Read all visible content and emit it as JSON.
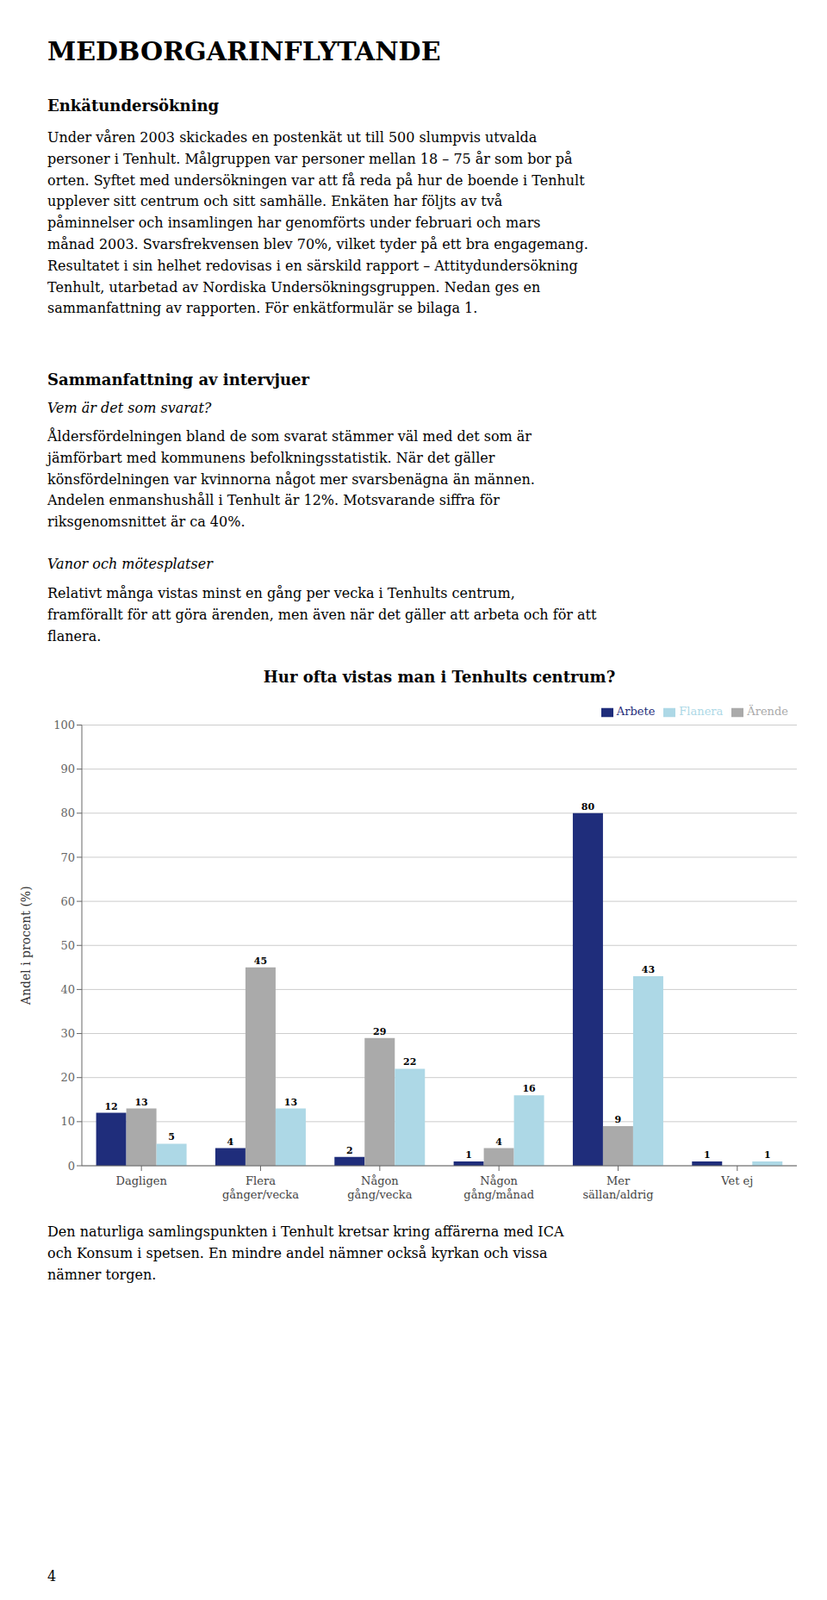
{
  "page_title": "MEDBORGARINFLYTANDE",
  "section1_title": "Enkätundersökning",
  "body1_lines": [
    "Under våren 2003 skickades en postenkät ut till 500 slumpvis utvalda",
    "personer i Tenhult. Målgruppen var personer mellan 18 – 75 år som bor på",
    "orten. Syftet med undersökningen var att få reda på hur de boende i Tenhult",
    "upplever sitt centrum och sitt samhälle. Enkäten har följts av två",
    "påminnelser och insamlingen har genomförts under februari och mars",
    "månad 2003. Svarsfrekvensen blev 70%, vilket tyder på ett bra engagemang.",
    "Resultatet i sin helhet redovisas i en särskild rapport – Attitydundersökning",
    "Tenhult, utarbetad av Nordiska Undersökningsgruppen. Nedan ges en",
    "sammanfattning av rapporten. För enkätformulär se bilaga 1."
  ],
  "section2_title": "Sammanfattning av intervjuer",
  "section2_italic": "Vem är det som svarat?",
  "body2_lines": [
    "Åldersfördelningen bland de som svarat stämmer väl med det som är",
    "jämförbart med kommunens befolkningsstatistik. När det gäller",
    "könsfördelningen var kvinnorna något mer svarsbenägna än männen.",
    "Andelen enmanshushåll i Tenhult är 12%. Motsvarande siffra för",
    "riksgenomsnittet är ca 40%."
  ],
  "section3_italic": "Vanor och mötesplatser",
  "body3_lines": [
    "Relativt många vistas minst en gång per vecka i Tenhults centrum,",
    "framförallt för att göra ärenden, men även när det gäller att arbeta och för att",
    "flanera."
  ],
  "footer_lines": [
    "Den naturliga samlingspunkten i Tenhult kretsar kring affärerna med ICA",
    "och Konsum i spetsen. En mindre andel nämner också kyrkan och vissa",
    "nämner torgen."
  ],
  "page_number": "4",
  "chart_data": {
    "type": "bar",
    "title": "Hur ofta vistas man i Tenhults centrum?",
    "ylabel": "Andel i procent (%)",
    "categories": [
      "Dagligen",
      "Flera\ngånger/vecka",
      "Någon\ngång/vecka",
      "Någon\ngång/månad",
      "Mer\nsällan/aldrig",
      "Vet ej"
    ],
    "series": [
      {
        "name": "Arbete",
        "color": "#1f2d7b",
        "values": [
          12,
          4,
          2,
          1,
          80,
          1
        ]
      },
      {
        "name": "Ärende",
        "color": "#aaaaaa",
        "values": [
          13,
          45,
          29,
          4,
          9,
          0
        ]
      },
      {
        "name": "Flanera",
        "color": "#add8e6",
        "values": [
          5,
          13,
          22,
          16,
          43,
          1
        ]
      }
    ],
    "ylim": [
      0,
      100
    ],
    "yticks": [
      0,
      10,
      20,
      30,
      40,
      50,
      60,
      70,
      80,
      90,
      100
    ],
    "grid": true,
    "legend": "upper right",
    "data_labels": true
  }
}
